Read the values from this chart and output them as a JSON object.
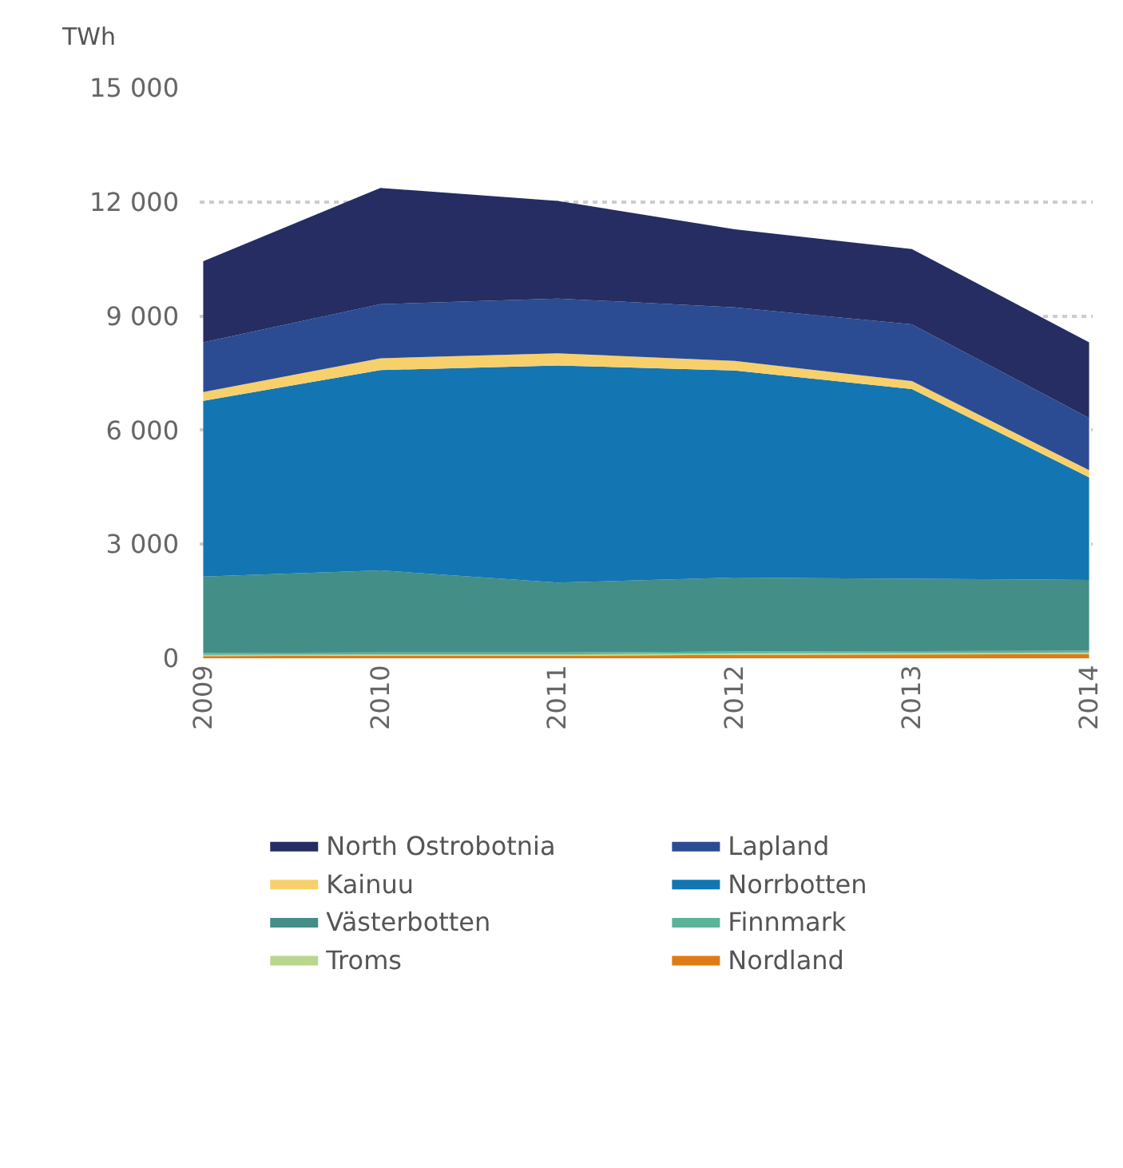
{
  "chart_data": {
    "type": "area",
    "stacked": true,
    "ylabel": "TWh",
    "categories": [
      "2009",
      "2010",
      "2011",
      "2012",
      "2013",
      "2014"
    ],
    "series": [
      {
        "name": "Nordland",
        "color": "#e07b13",
        "values": [
          60,
          70,
          70,
          90,
          100,
          110
        ]
      },
      {
        "name": "Troms",
        "color": "#b9d78f",
        "values": [
          30,
          30,
          30,
          40,
          40,
          40
        ]
      },
      {
        "name": "Finnmark",
        "color": "#5bb39a",
        "values": [
          50,
          50,
          50,
          50,
          50,
          50
        ]
      },
      {
        "name": "Västerbotten",
        "color": "#438e87",
        "values": [
          2010,
          2160,
          1840,
          1940,
          1900,
          1860
        ]
      },
      {
        "name": "Norrbotten",
        "color": "#1376b2",
        "values": [
          4620,
          5270,
          5710,
          5450,
          4990,
          2700
        ]
      },
      {
        "name": "Kainuu",
        "color": "#f7d06c",
        "values": [
          230,
          310,
          320,
          250,
          210,
          190
        ]
      },
      {
        "name": "Lapland",
        "color": "#2b4c93",
        "values": [
          1310,
          1420,
          1440,
          1410,
          1490,
          1370
        ]
      },
      {
        "name": "North Ostrobotnia",
        "color": "#252d63",
        "values": [
          2130,
          3060,
          2570,
          2050,
          1980,
          1990
        ]
      }
    ],
    "ylim": [
      0,
      15000
    ],
    "yticks": [
      {
        "value": 0,
        "label": "0"
      },
      {
        "value": 3000,
        "label": "3 000"
      },
      {
        "value": 6000,
        "label": "6 000"
      },
      {
        "value": 9000,
        "label": "9 000"
      },
      {
        "value": 12000,
        "label": "12 000"
      },
      {
        "value": 15000,
        "label": "15 000"
      }
    ],
    "grid": "y",
    "legend": "bottom"
  }
}
